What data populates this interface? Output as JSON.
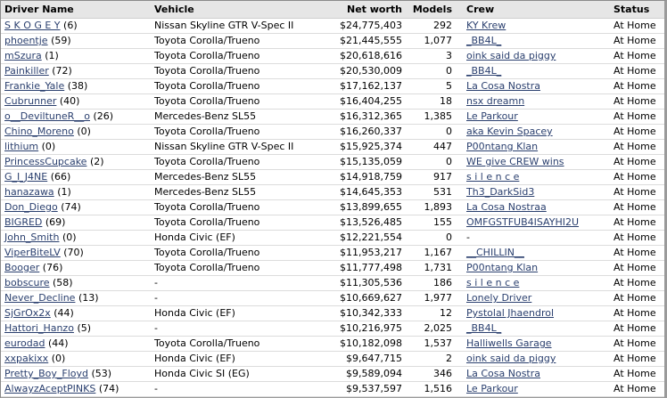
{
  "headers": {
    "driver": "Driver Name",
    "vehicle": "Vehicle",
    "networth": "Net worth",
    "models": "Models",
    "crew": "Crew",
    "status": "Status"
  },
  "rows": [
    {
      "driver": "S K O G E Y",
      "level": "(6)",
      "vehicle": "Nissan Skyline GTR V-Spec II",
      "networth": "$24,775,403",
      "models": "292",
      "crew": "KY Krew",
      "crew_link": true,
      "status": "At Home"
    },
    {
      "driver": "phoentje",
      "level": "(59)",
      "vehicle": "Toyota Corolla/Trueno",
      "networth": "$21,445,555",
      "models": "1,077",
      "crew": "_BB4L_",
      "crew_link": true,
      "status": "At Home"
    },
    {
      "driver": "mSzura",
      "level": "(1)",
      "vehicle": "Toyota Corolla/Trueno",
      "networth": "$20,618,616",
      "models": "3",
      "crew": "oink said da piggy",
      "crew_link": true,
      "status": "At Home"
    },
    {
      "driver": "Painkiller",
      "level": "(72)",
      "vehicle": "Toyota Corolla/Trueno",
      "networth": "$20,530,009",
      "models": "0",
      "crew": "_BB4L_",
      "crew_link": true,
      "status": "At Home"
    },
    {
      "driver": "Frankie_Yale",
      "level": "(38)",
      "vehicle": "Toyota Corolla/Trueno",
      "networth": "$17,162,137",
      "models": "5",
      "crew": "La Cosa Nostra",
      "crew_link": true,
      "status": "At Home"
    },
    {
      "driver": "Cubrunner",
      "level": "(40)",
      "vehicle": "Toyota Corolla/Trueno",
      "networth": "$16,404,255",
      "models": "18",
      "crew": "nsx dreamn",
      "crew_link": true,
      "status": "At Home"
    },
    {
      "driver": "o__DeviltuneR__o",
      "level": "(26)",
      "vehicle": "Mercedes-Benz SL55",
      "networth": "$16,312,365",
      "models": "1,385",
      "crew": "Le Parkour",
      "crew_link": true,
      "status": "At Home"
    },
    {
      "driver": "Chino_Moreno",
      "level": "(0)",
      "vehicle": "Toyota Corolla/Trueno",
      "networth": "$16,260,337",
      "models": "0",
      "crew": "aka Kevin Spacey",
      "crew_link": true,
      "status": "At Home"
    },
    {
      "driver": "lithium",
      "level": "(0)",
      "vehicle": "Nissan Skyline GTR V-Spec II",
      "networth": "$15,925,374",
      "models": "447",
      "crew": "P00ntang Klan",
      "crew_link": true,
      "status": "At Home"
    },
    {
      "driver": "PrincessCupcake",
      "level": "(2)",
      "vehicle": "Toyota Corolla/Trueno",
      "networth": "$15,135,059",
      "models": "0",
      "crew": "WE give CREW wins",
      "crew_link": true,
      "status": "At Home"
    },
    {
      "driver": "G_I_J4NE",
      "level": "(66)",
      "vehicle": "Mercedes-Benz SL55",
      "networth": "$14,918,759",
      "models": "917",
      "crew": "s i l e n c e",
      "crew_link": true,
      "status": "At Home"
    },
    {
      "driver": "hanazawa",
      "level": "(1)",
      "vehicle": "Mercedes-Benz SL55",
      "networth": "$14,645,353",
      "models": "531",
      "crew": "Th3_DarkSid3",
      "crew_link": true,
      "status": "At Home"
    },
    {
      "driver": "Don_Diego",
      "level": "(74)",
      "vehicle": "Toyota Corolla/Trueno",
      "networth": "$13,899,655",
      "models": "1,893",
      "crew": "La Cosa Nostraa",
      "crew_link": true,
      "status": "At Home"
    },
    {
      "driver": "BIGRED",
      "level": "(69)",
      "vehicle": "Toyota Corolla/Trueno",
      "networth": "$13,526,485",
      "models": "155",
      "crew": "OMFGSTFUB4ISAYHI2U",
      "crew_link": true,
      "status": "At Home"
    },
    {
      "driver": "John_Smith",
      "level": "(0)",
      "vehicle": "Honda Civic (EF)",
      "networth": "$12,221,554",
      "models": "0",
      "crew": "-",
      "crew_link": false,
      "status": "At Home"
    },
    {
      "driver": "ViperBiteLV",
      "level": "(70)",
      "vehicle": "Toyota Corolla/Trueno",
      "networth": "$11,953,217",
      "models": "1,167",
      "crew": "__CHILLIN__",
      "crew_link": true,
      "status": "At Home"
    },
    {
      "driver": "Booger",
      "level": "(76)",
      "vehicle": "Toyota Corolla/Trueno",
      "networth": "$11,777,498",
      "models": "1,731",
      "crew": "P00ntang Klan",
      "crew_link": true,
      "status": "At Home"
    },
    {
      "driver": "bobscure",
      "level": "(58)",
      "vehicle": "-",
      "networth": "$11,305,536",
      "models": "186",
      "crew": "s i l e n c e",
      "crew_link": true,
      "status": "At Home"
    },
    {
      "driver": "Never_Decline",
      "level": "(13)",
      "vehicle": "-",
      "networth": "$10,669,627",
      "models": "1,977",
      "crew": "Lonely Driver",
      "crew_link": true,
      "status": "At Home"
    },
    {
      "driver": "SjGrOx2x",
      "level": "(44)",
      "vehicle": "Honda Civic (EF)",
      "networth": "$10,342,333",
      "models": "12",
      "crew": "Pystolal Jhaendrol",
      "crew_link": true,
      "status": "At Home"
    },
    {
      "driver": "Hattori_Hanzo",
      "level": "(5)",
      "vehicle": "-",
      "networth": "$10,216,975",
      "models": "2,025",
      "crew": "_BB4L_",
      "crew_link": true,
      "status": "At Home"
    },
    {
      "driver": "eurodad",
      "level": "(44)",
      "vehicle": "Toyota Corolla/Trueno",
      "networth": "$10,182,098",
      "models": "1,537",
      "crew": "Halliwells Garage",
      "crew_link": true,
      "status": "At Home"
    },
    {
      "driver": "xxpakixx",
      "level": "(0)",
      "vehicle": "Honda Civic (EF)",
      "networth": "$9,647,715",
      "models": "2",
      "crew": "oink said da piggy",
      "crew_link": true,
      "status": "At Home"
    },
    {
      "driver": "Pretty_Boy_Floyd",
      "level": "(53)",
      "vehicle": "Honda Civic SI (EG)",
      "networth": "$9,589,094",
      "models": "346",
      "crew": "La Cosa Nostra",
      "crew_link": true,
      "status": "At Home"
    },
    {
      "driver": "AlwayzAceptPINKS",
      "level": "(74)",
      "vehicle": "-",
      "networth": "$9,537,597",
      "models": "1,516",
      "crew": "Le Parkour",
      "crew_link": true,
      "status": "At Home"
    }
  ]
}
